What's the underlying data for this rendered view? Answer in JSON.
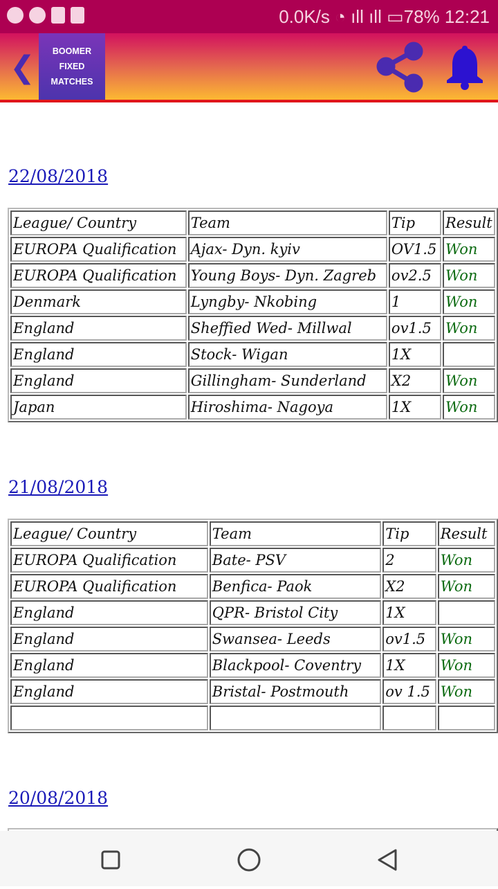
{
  "status_bar": {
    "net_speed": "0.0K/s",
    "battery": "78%",
    "time": "12:21"
  },
  "app_bar": {
    "title": "BOOMER FIXED MATCHES",
    "icons": [
      "back-icon",
      "share-icon",
      "bell-icon"
    ],
    "gradient": [
      "#d2115e",
      "#fcb932"
    ],
    "accent": "#4a2bb0"
  },
  "sections": [
    {
      "date": "22/08/2018",
      "headers": [
        "League/ Country",
        "Team",
        "Tip",
        "Result"
      ],
      "rows": [
        [
          "EUROPA Qualification",
          "Ajax- Dyn. kyiv",
          "OV1.5",
          "Won"
        ],
        [
          "EUROPA Qualification",
          "Young Boys- Dyn. Zagreb",
          "ov2.5",
          "Won"
        ],
        [
          "Denmark",
          "Lyngby- Nkobing",
          "1",
          "Won"
        ],
        [
          "England",
          "Sheffied Wed- Millwal",
          "ov1.5",
          "Won"
        ],
        [
          "England",
          "Stock- Wigan",
          "1X",
          ""
        ],
        [
          "England",
          "Gillingham- Sunderland",
          "X2",
          "Won"
        ],
        [
          "Japan",
          "Hiroshima- Nagoya",
          "1X",
          "Won"
        ]
      ]
    },
    {
      "date": "21/08/2018",
      "headers": [
        "League/ Country",
        "Team",
        "Tip",
        "Result"
      ],
      "rows": [
        [
          "EUROPA Qualification",
          "Bate- PSV",
          "2",
          "Won"
        ],
        [
          "EUROPA Qualification",
          "Benfica- Paok",
          "X2",
          "Won"
        ],
        [
          "England",
          "QPR- Bristol City",
          "1X",
          ""
        ],
        [
          "England",
          "Swansea- Leeds",
          "ov1.5",
          "Won"
        ],
        [
          "England",
          "Blackpool- Coventry",
          "1X",
          "Won"
        ],
        [
          "England",
          "Bristal- Postmouth",
          "ov 1.5",
          "Won"
        ],
        [
          "",
          "",
          "",
          ""
        ]
      ]
    },
    {
      "date": "20/08/2018",
      "headers": [],
      "rows": []
    }
  ],
  "won_color": "#0b6a10"
}
